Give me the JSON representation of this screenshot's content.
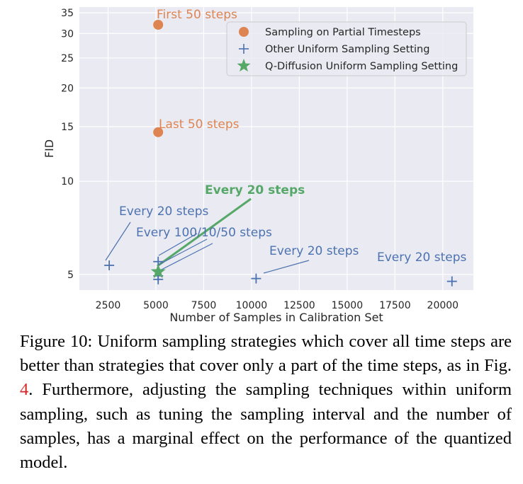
{
  "chart_data": {
    "type": "scatter",
    "xlabel": "Number of Samples in Calibration Set",
    "ylabel": "FID",
    "xlim": [
      1000,
      21600
    ],
    "ylim": [
      4.45,
      36.5
    ],
    "y_scale": "log",
    "grid": true,
    "background": "#eaeaf2",
    "xticks": [
      2500,
      5000,
      7500,
      10000,
      12500,
      15000,
      17500,
      20000
    ],
    "xtick_labels": [
      "2500",
      "5000",
      "7500",
      "10000",
      "12500",
      "15000",
      "17500",
      "20000"
    ],
    "yticks": [
      5,
      10,
      15,
      20,
      25,
      30,
      35
    ],
    "ytick_labels": [
      "5",
      "10",
      "15",
      "20",
      "25",
      "30",
      "35"
    ],
    "legend_position": "top-right",
    "series": [
      {
        "name": "Sampling on Partial Timesteps",
        "marker": "circle",
        "color": "#dd8452",
        "points": [
          {
            "x": 5120,
            "y": 32.0,
            "label": "First 50 steps"
          },
          {
            "x": 5120,
            "y": 14.4,
            "label": "Last 50 steps"
          }
        ]
      },
      {
        "name": "Other Uniform Sampling Setting",
        "marker": "plus",
        "color": "#4c72b0",
        "points": [
          {
            "x": 2560,
            "y": 5.35
          },
          {
            "x": 5120,
            "y": 5.5
          },
          {
            "x": 5120,
            "y": 4.95
          },
          {
            "x": 5120,
            "y": 4.82
          },
          {
            "x": 10240,
            "y": 4.85
          },
          {
            "x": 20480,
            "y": 4.75
          }
        ]
      },
      {
        "name": "Q-Diffusion Uniform Sampling Setting",
        "marker": "star",
        "color": "#55a868",
        "points": [
          {
            "x": 5120,
            "y": 5.1
          }
        ]
      }
    ],
    "annotations": [
      {
        "text": "First 50 steps",
        "color": "#dd8452",
        "bold": false
      },
      {
        "text": "Last 50 steps",
        "color": "#dd8452",
        "bold": false
      },
      {
        "text": "Every 20 steps",
        "color": "#55a868",
        "bold": true
      },
      {
        "text": "Every 20 steps",
        "color": "#4c72b0",
        "bold": false
      },
      {
        "text": "Every 100/10/50 steps",
        "color": "#4c72b0",
        "bold": false
      },
      {
        "text": "Every 20 steps",
        "color": "#4c72b0",
        "bold": false
      },
      {
        "text": "Every 20 steps",
        "color": "#4c72b0",
        "bold": false
      }
    ]
  },
  "caption": {
    "label": "Figure 10:",
    "text_before_ref": "Uniform sampling strategies which cover all time steps are better than strategies that cover only a part of the time steps, as in Fig. ",
    "ref": "4",
    "text_after_ref": ". Furthermore, adjusting the sampling techniques within uniform sampling, such as tuning the sampling interval and the number of samples, has a marginal effect on the performance of the quantized model."
  }
}
